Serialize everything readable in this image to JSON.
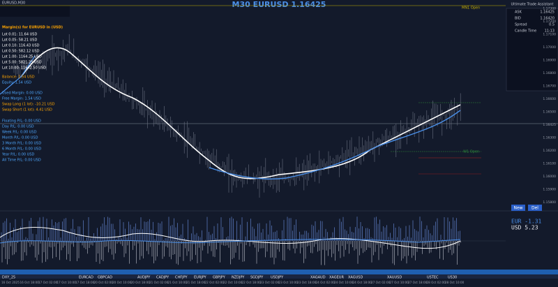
{
  "header": {
    "symbol": "EURUSD,M30",
    "title": "M30 EURUSD 1.16425",
    "mn1": "MN1 Open",
    "w1": "W1 Open"
  },
  "margin_panel": {
    "heading": "Margin(s) for EURUSD in (USD)",
    "lots": [
      "Lot 0.01: 11.64 USD",
      "Lot 0.05: 58.21 USD",
      "Lot 0.10: 116.43 USD",
      "Lot 0.50: 582.12 USD",
      "Lot 1.00: 1164.25 USD",
      "Lot 5.00: 5821.25 USD",
      "Lot 10.00: 11642.50 USD"
    ]
  },
  "account": [
    "Balance: 1.54 USD",
    "Equity: 1.54 USD"
  ],
  "margin_info": [
    "Used Margin: 0.00 USD",
    "Free Margin: 1.54 USD",
    "Swap Long (1 lot): -10.21 USD",
    "Swap Short (1 lot): 4.41 USD"
  ],
  "pl": [
    "Floating P/L: 0.00 USD",
    "Day P/L: 0.00 USD",
    "Week P/L: 0.00 USD",
    "Month P/L: 0.00 USD",
    "3 Month P/L: 0.00 USD",
    "6 Month P/L: 0.00 USD",
    "Year P/L: 0.00 USD",
    "All Time P/L: 0.00 USD"
  ],
  "assistant": {
    "title": "Ultimate Trade Assistant",
    "rows": [
      [
        "ASK",
        "1.16425"
      ],
      [
        "BID",
        "1.16420"
      ],
      [
        "Spread",
        "0.5"
      ],
      [
        "Candle Time",
        "11:13"
      ]
    ]
  },
  "buttons": [
    "New",
    "Del"
  ],
  "indicator": {
    "eur": "EUR -1.31",
    "usd": "USD  5.23"
  },
  "price_axis": [
    "1.17300",
    "1.17200",
    "1.17100",
    "1.17000",
    "1.16900",
    "1.16800",
    "1.16700",
    "1.16600",
    "1.16500",
    "1.16425",
    "1.16300",
    "1.16200",
    "1.16100",
    "1.16000",
    "1.15900",
    "1.15800"
  ],
  "symbols": [
    "DXY_25",
    "EURCAD",
    "GBPCAD",
    "AUDJPY",
    "CADJPY",
    "CHFJPY",
    "EURJPY",
    "GBPJPY",
    "NZDJPY",
    "SGDJPY",
    "USDJPY",
    "XAGAUD",
    "XAGEUR",
    "XAGUSD",
    "XAUUSD",
    "USTEC",
    "US30"
  ],
  "dates": [
    "16 Oct 2025",
    "16 Oct 18:00",
    "17 Oct 02:00",
    "17 Oct 10:00",
    "17 Oct 18:00",
    "20 Oct 02:00",
    "20 Oct 10:00",
    "20 Oct 18:00",
    "21 Oct 02:00",
    "21 Oct 10:00",
    "21 Oct 18:00",
    "22 Oct 02:00",
    "22 Oct 10:00",
    "22 Oct 18:00",
    "23 Oct 02:00",
    "23 Oct 10:00",
    "23 Oct 18:00",
    "24 Oct 02:00",
    "24 Oct 10:00",
    "24 Oct 18:00",
    "27 Oct 02:00",
    "27 Oct 10:00",
    "27 Oct 18:00",
    "28 Oct 02:00",
    "28 Oct 10:00"
  ]
}
